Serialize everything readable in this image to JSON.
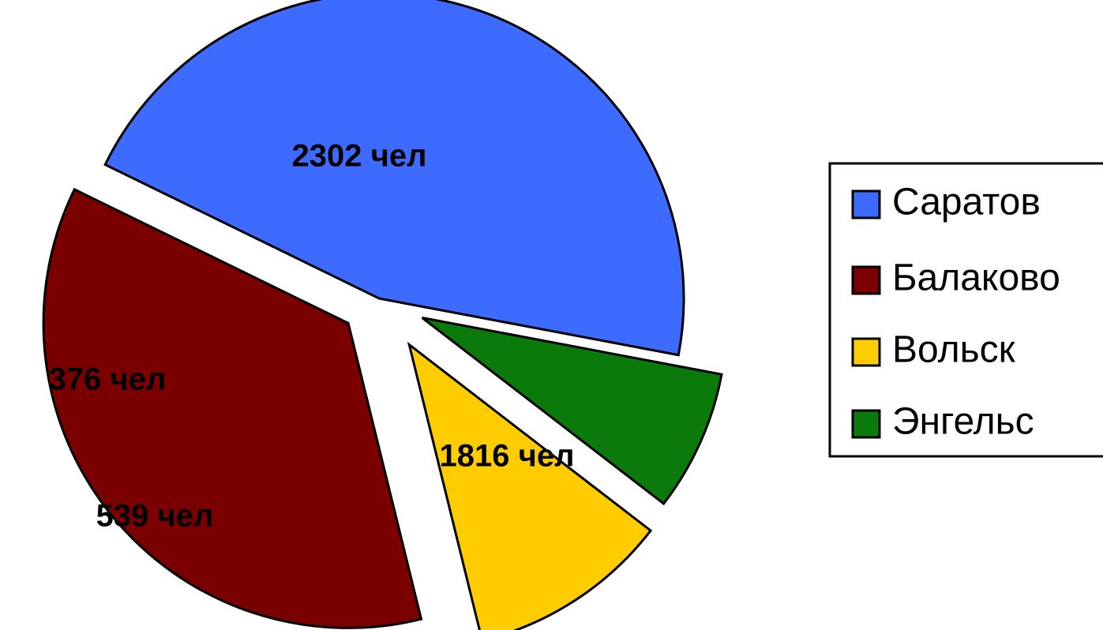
{
  "chart_data": {
    "type": "pie",
    "title": "",
    "slices": [
      {
        "category": "Саратов",
        "value": 2302,
        "label": "2302 чел",
        "color": "#3d6bff",
        "exploded": true
      },
      {
        "category": "Балаково",
        "value": 1816,
        "label": "1816 чел",
        "color": "#7a0000",
        "exploded": true
      },
      {
        "category": "Вольск",
        "value": 539,
        "label": "539 чел",
        "color": "#ffcc00",
        "exploded": true
      },
      {
        "category": "Энгельс",
        "value": 376,
        "label": "376 чел",
        "color": "#0a7a0a",
        "exploded": true
      }
    ],
    "legend": {
      "position": "right",
      "items": [
        "Саратов",
        "Балаково",
        "Вольск",
        "Энгельс"
      ]
    }
  }
}
